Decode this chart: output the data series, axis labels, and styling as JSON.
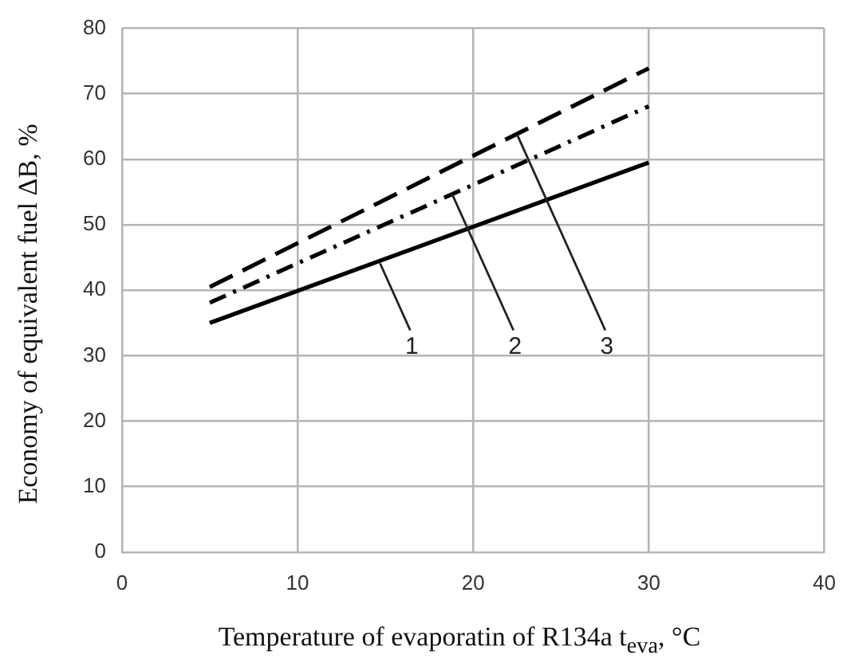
{
  "chart_data": {
    "type": "line",
    "xlabel": "Temperature of evaporatin of R134a t$_{eva}$, °C",
    "ylabel": "Economy of equivalent fuel ΔB, %",
    "xlim": [
      0,
      40
    ],
    "xticks": [
      0,
      10,
      20,
      30,
      40
    ],
    "ylim": [
      0,
      80
    ],
    "yticks": [
      0,
      10,
      20,
      30,
      40,
      50,
      60,
      70,
      80
    ],
    "grid": true,
    "legend": false,
    "marker": "none",
    "x": [
      5,
      30
    ],
    "series": [
      {
        "values": [
          35.0,
          59.5
        ],
        "color": "#000000",
        "line_style": "solid"
      },
      {
        "values": [
          38.1,
          68.1
        ],
        "color": "#000000",
        "line_style": "dashdot"
      },
      {
        "values": [
          40.5,
          73.9
        ],
        "color": "#000000",
        "line_style": "dashed"
      }
    ],
    "annotations": [
      {
        "text": "1",
        "x": 14.7,
        "y": 44.1
      },
      {
        "text": "2",
        "x": 18.8,
        "y": 54.7
      },
      {
        "text": "3",
        "x": 22.5,
        "y": 63.8
      }
    ]
  }
}
